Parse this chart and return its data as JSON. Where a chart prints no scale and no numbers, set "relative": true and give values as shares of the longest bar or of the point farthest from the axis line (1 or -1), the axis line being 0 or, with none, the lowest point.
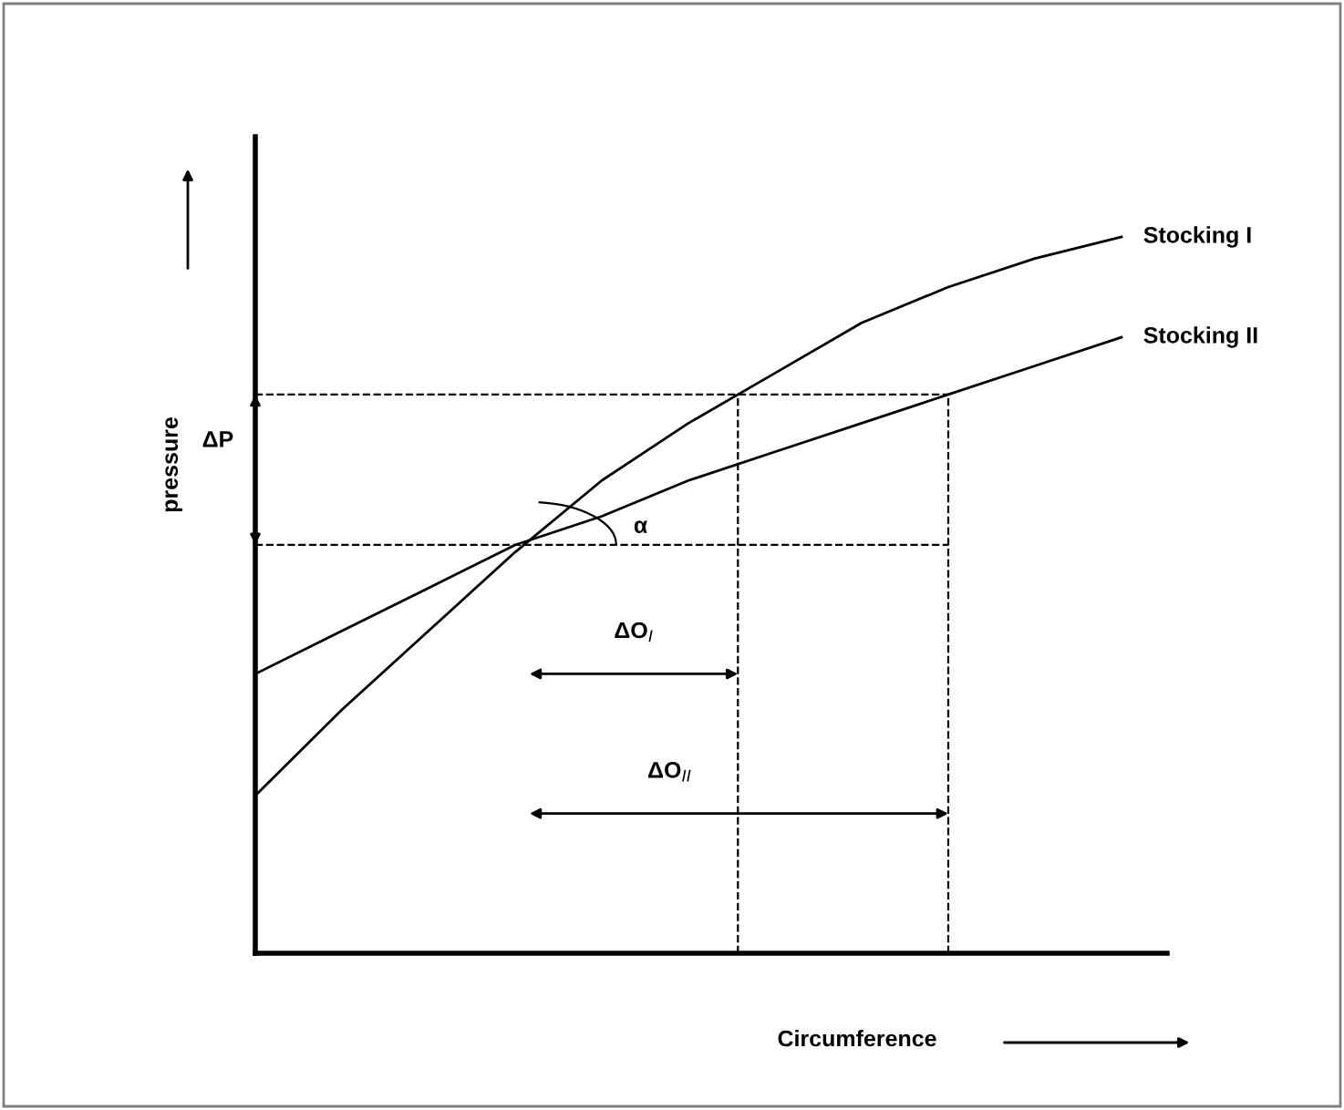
{
  "chart_data": {
    "type": "line",
    "relative": true,
    "xlabel": "Circumference",
    "ylabel": "pressure",
    "categories": [
      null,
      null,
      null,
      null,
      null,
      null,
      null,
      null,
      null,
      null,
      null
    ],
    "series": [
      {
        "name": "Stocking I",
        "color": "#000000",
        "values": [
          0.22,
          0.34,
          0.45,
          0.56,
          0.66,
          0.74,
          0.81,
          0.88,
          0.93,
          0.97,
          1.0
        ]
      },
      {
        "name": "Stocking II",
        "color": "#000000",
        "values": [
          0.39,
          0.45,
          0.51,
          0.57,
          0.61,
          0.66,
          0.7,
          0.74,
          0.78,
          0.82,
          0.86
        ]
      }
    ],
    "ref_lines": [
      {
        "axis": "y",
        "value": 0.57,
        "line_style": "dashed",
        "color": "#000000"
      },
      {
        "axis": "y",
        "value": 0.78,
        "line_style": "dashed",
        "color": "#000000"
      }
    ],
    "annotations": [
      "ΔP",
      "α",
      "ΔO$_{I}$",
      "ΔO$_{II}$"
    ],
    "legend": false,
    "grid": false,
    "marker": "none",
    "line_style": "solid"
  }
}
